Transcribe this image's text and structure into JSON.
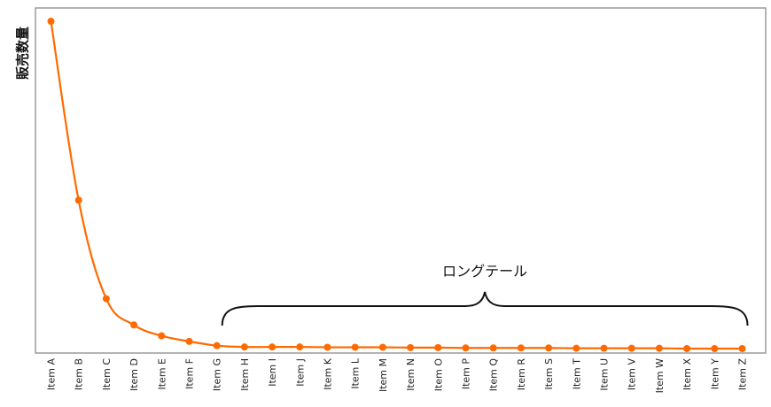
{
  "chart_data": {
    "type": "line",
    "ylabel": "販売数量",
    "xlabel": "",
    "title": "",
    "categories": [
      "Item A",
      "Item B",
      "Item C",
      "Item D",
      "Item E",
      "Item F",
      "Item G",
      "Item H",
      "Item I",
      "Item J",
      "Item K",
      "Item L",
      "Item M",
      "Item N",
      "Item O",
      "Item P",
      "Item Q",
      "Item R",
      "Item S",
      "Item T",
      "Item U",
      "Item V",
      "Item W",
      "Item X",
      "Item Y",
      "Item Z"
    ],
    "series": [
      {
        "values": [
          100,
          45.5,
          15.5,
          7.5,
          4.2,
          2.5,
          1.2,
          0.8,
          0.8,
          0.8,
          0.7,
          0.7,
          0.7,
          0.6,
          0.6,
          0.5,
          0.5,
          0.5,
          0.5,
          0.4,
          0.4,
          0.4,
          0.4,
          0.3,
          0.3,
          0.3
        ],
        "color": "#ff6a00"
      }
    ],
    "ylim": [
      -2,
      102
    ],
    "y_ticks_shown": false,
    "grid": false,
    "annotations": [
      {
        "text": "ロングテール",
        "type": "brace",
        "from_category": "Item G",
        "to_category": "Item Z"
      }
    ]
  },
  "colors": {
    "line": "#ff6a00",
    "marker": "#ff6a00",
    "axis_frame": "#9a9a9a",
    "brace": "#111111"
  }
}
